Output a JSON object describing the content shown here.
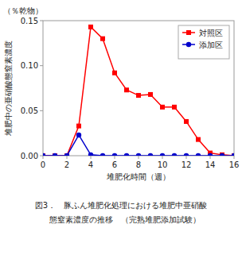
{
  "chart_data": {
    "type": "line",
    "title": "図3．　豚ふん堆肥化処理における堆肥中亜硝酸",
    "subtitle": "　態窒素濃度の推移　（完熟堆肥添加試験）",
    "x_label": "堆肥化時間（週）",
    "y_label": "堆肥中の亜硝酸態窒素濃度",
    "annotations": [
      "（％乾物）"
    ],
    "x": [
      0,
      1,
      2,
      3,
      4,
      5,
      6,
      7,
      8,
      9,
      10,
      11,
      12,
      13,
      14,
      15,
      16
    ],
    "series": [
      {
        "name": "対照区",
        "color": "#FF0000",
        "marker": "square",
        "values": [
          0.0,
          0.0,
          0.0,
          0.033,
          0.143,
          0.13,
          0.092,
          0.073,
          0.067,
          0.068,
          0.054,
          0.054,
          0.038,
          0.018,
          0.003,
          0.001,
          0.0
        ]
      },
      {
        "name": "添加区",
        "color": "#0000CC",
        "marker": "circle",
        "values": [
          0.0,
          0.0,
          0.0,
          0.023,
          0.001,
          0.0,
          0.0,
          0.0,
          0.0,
          0.0,
          0.0,
          0.0,
          0.0,
          0.0,
          0.0,
          0.0,
          0.0
        ]
      }
    ],
    "xlim": [
      0,
      16
    ],
    "ylim": [
      0,
      0.15
    ],
    "xticks": [
      0,
      2,
      4,
      6,
      8,
      10,
      12,
      14,
      16
    ],
    "yticks": [
      {
        "value": 0.0,
        "label": "0.00"
      },
      0.05,
      {
        "value": 0.1,
        "label": "0.10"
      },
      0.15
    ],
    "grid": false,
    "legend": "upper right"
  }
}
